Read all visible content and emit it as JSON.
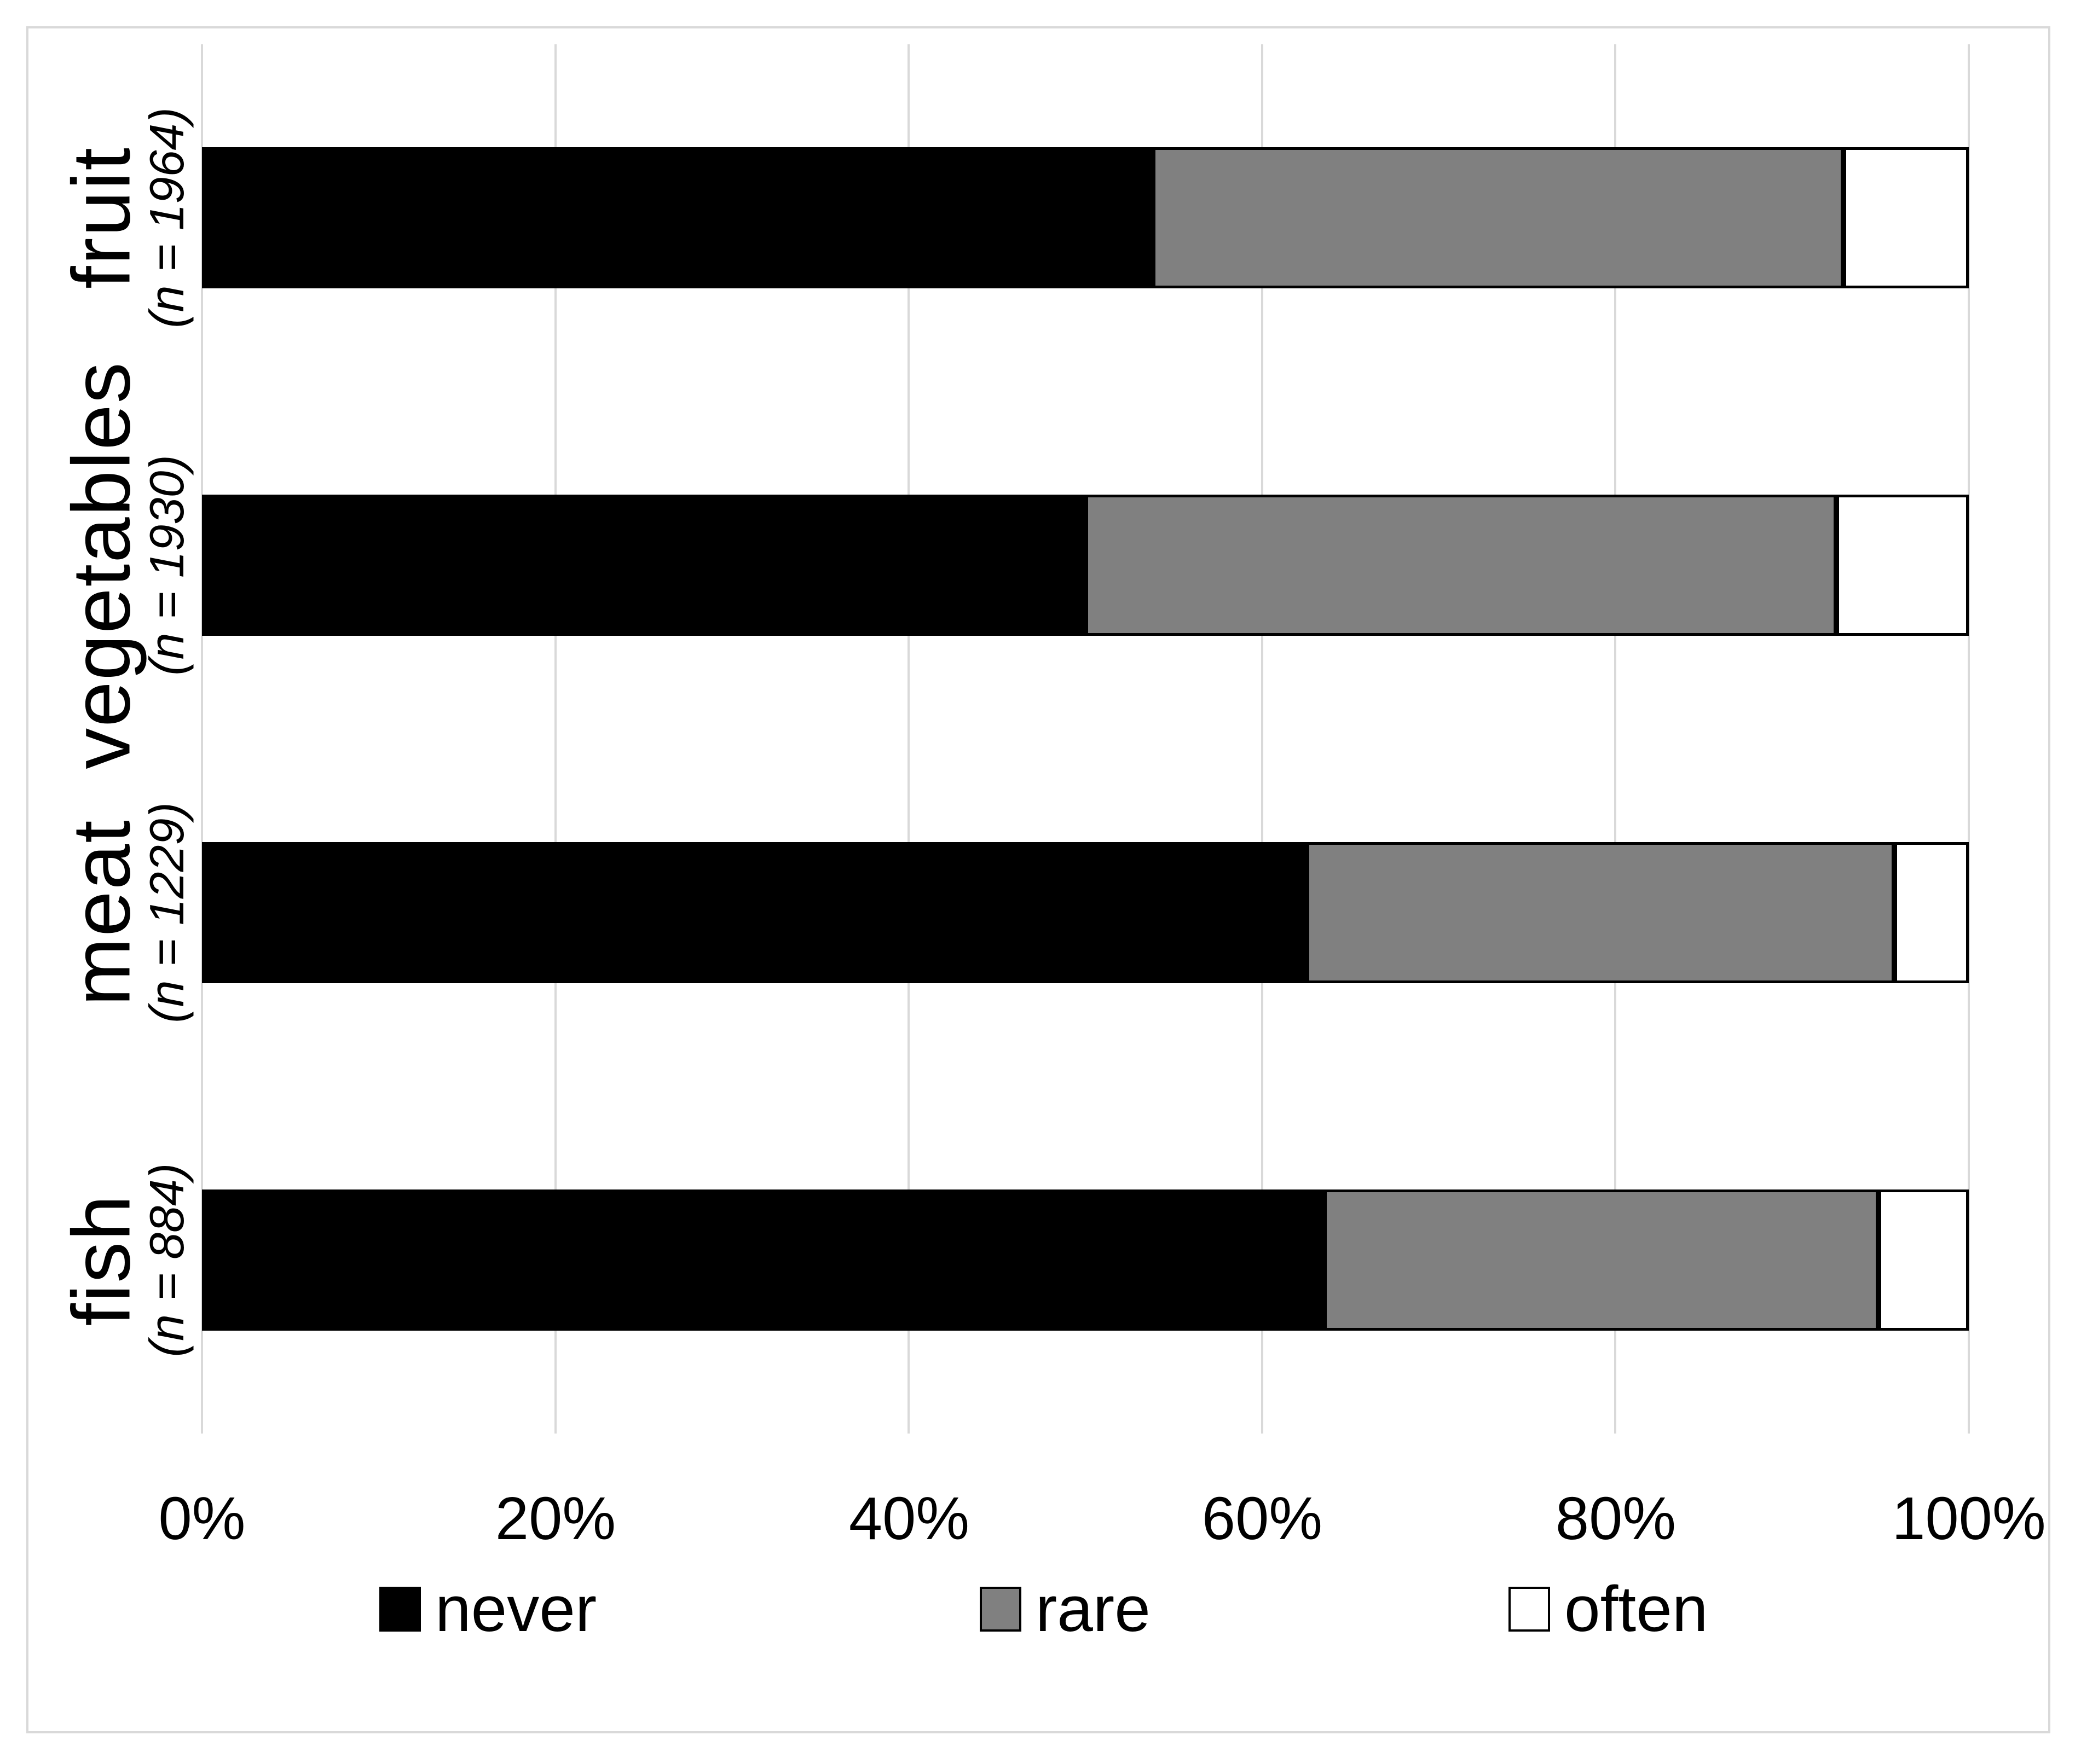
{
  "chart_data": {
    "type": "bar",
    "orientation": "horizontal",
    "stacked": true,
    "title": "",
    "xlabel": "",
    "ylabel": "",
    "xlim": [
      0,
      100
    ],
    "grid": true,
    "legend_position": "bottom",
    "categories": [
      "fruit",
      "vegetables",
      "meat",
      "fish"
    ],
    "category_notes": [
      "(n = 1964)",
      "(n = 1930)",
      "(n = 1229)",
      "(n = 884)"
    ],
    "sample_sizes": [
      1964,
      1930,
      1229,
      884
    ],
    "series": [
      {
        "name": "never",
        "color": "#000000",
        "values": [
          53.8,
          50.0,
          62.5,
          63.5
        ]
      },
      {
        "name": "rare",
        "color": "#808080",
        "values": [
          39.1,
          42.5,
          33.3,
          31.4
        ]
      },
      {
        "name": "often",
        "color": "#ffffff",
        "values": [
          7.1,
          7.5,
          4.2,
          5.1
        ]
      }
    ],
    "x_ticks": [
      "0%",
      "20%",
      "40%",
      "60%",
      "80%",
      "100%"
    ]
  },
  "colors": {
    "grid": "#d9d9d9",
    "frame": "#d9d9d9",
    "bar_border": "#000000",
    "background": "#ffffff"
  }
}
